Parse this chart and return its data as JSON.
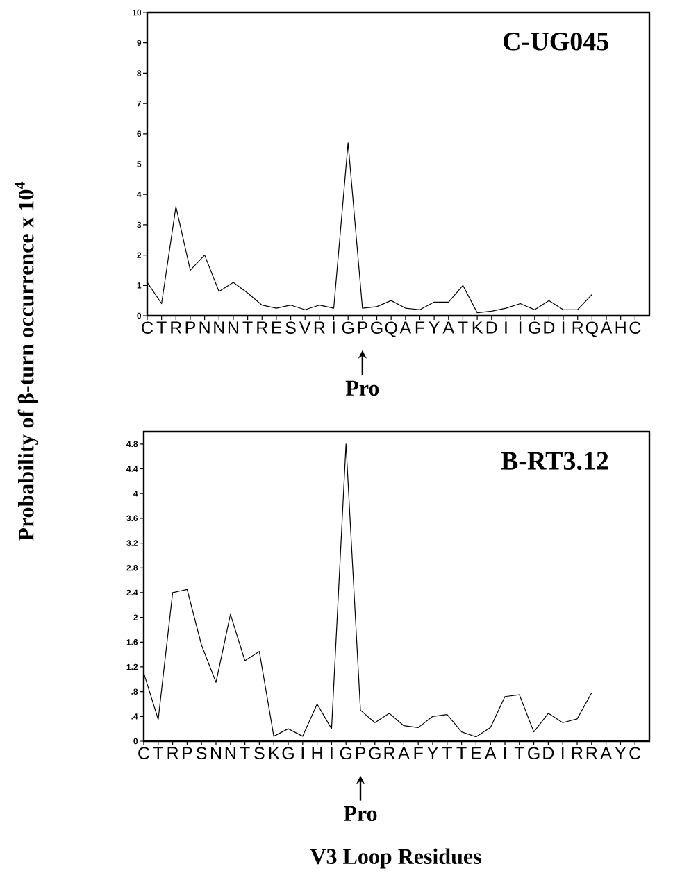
{
  "chart_data": [
    {
      "type": "line",
      "title": "C-UG045",
      "ylabel": "Probability of β-turn occurrence x 10$^{4}$",
      "categories": [
        "C",
        "T",
        "R",
        "P",
        "N",
        "N",
        "N",
        "T",
        "R",
        "E",
        "S",
        "V",
        "R",
        "I",
        "G",
        "P",
        "G",
        "Q",
        "A",
        "F",
        "Y",
        "A",
        "T",
        "K",
        "D",
        "I",
        "I",
        "G",
        "D",
        "I",
        "R",
        "Q",
        "A",
        "H",
        "C"
      ],
      "values": [
        1.1,
        0.4,
        3.6,
        1.5,
        2.0,
        0.8,
        1.1,
        0.75,
        0.35,
        0.25,
        0.35,
        0.2,
        0.35,
        0.25,
        5.7,
        0.25,
        0.3,
        0.5,
        0.25,
        0.2,
        0.45,
        0.45,
        1.0,
        0.1,
        0.15,
        0.25,
        0.4,
        0.2,
        0.5,
        0.2,
        0.2,
        0.7,
        null,
        null,
        null
      ],
      "color": "#000000",
      "ylim": [
        0,
        10
      ],
      "yticks": [
        0,
        1,
        2,
        3,
        4,
        5,
        6,
        7,
        8,
        9,
        10
      ],
      "grid": false,
      "marker": "none",
      "line_style": "solid",
      "annotations": [
        "Pro"
      ]
    },
    {
      "type": "line",
      "title": "B-RT3.12",
      "xlabel": "V3 Loop Residues",
      "categories": [
        "C",
        "T",
        "R",
        "P",
        "S",
        "N",
        "N",
        "T",
        "S",
        "K",
        "G",
        "I",
        "H",
        "I",
        "G",
        "P",
        "G",
        "R",
        "A",
        "F",
        "Y",
        "T",
        "T",
        "E",
        "A",
        "I",
        "T",
        "G",
        "D",
        "I",
        "R",
        "R",
        "A",
        "Y",
        "C"
      ],
      "values": [
        1.1,
        0.35,
        2.4,
        2.45,
        1.55,
        0.95,
        2.05,
        1.3,
        1.45,
        0.08,
        0.2,
        0.08,
        0.6,
        0.2,
        4.8,
        0.5,
        0.3,
        0.45,
        0.25,
        0.22,
        0.4,
        0.43,
        0.15,
        0.07,
        0.22,
        0.72,
        0.75,
        0.15,
        0.45,
        0.3,
        0.36,
        0.78,
        null,
        null,
        null
      ],
      "color": "#000000",
      "ylim": [
        0,
        5
      ],
      "yticks": [
        0,
        {
          "value": 0.4,
          "label": ".4"
        },
        {
          "value": 0.8,
          "label": ".8"
        },
        1.2,
        1.6,
        2,
        2.4,
        2.8,
        3.2,
        3.6,
        4,
        4.4,
        4.8
      ],
      "grid": false,
      "marker": "none",
      "line_style": "solid",
      "annotations": [
        "Pro"
      ]
    }
  ]
}
